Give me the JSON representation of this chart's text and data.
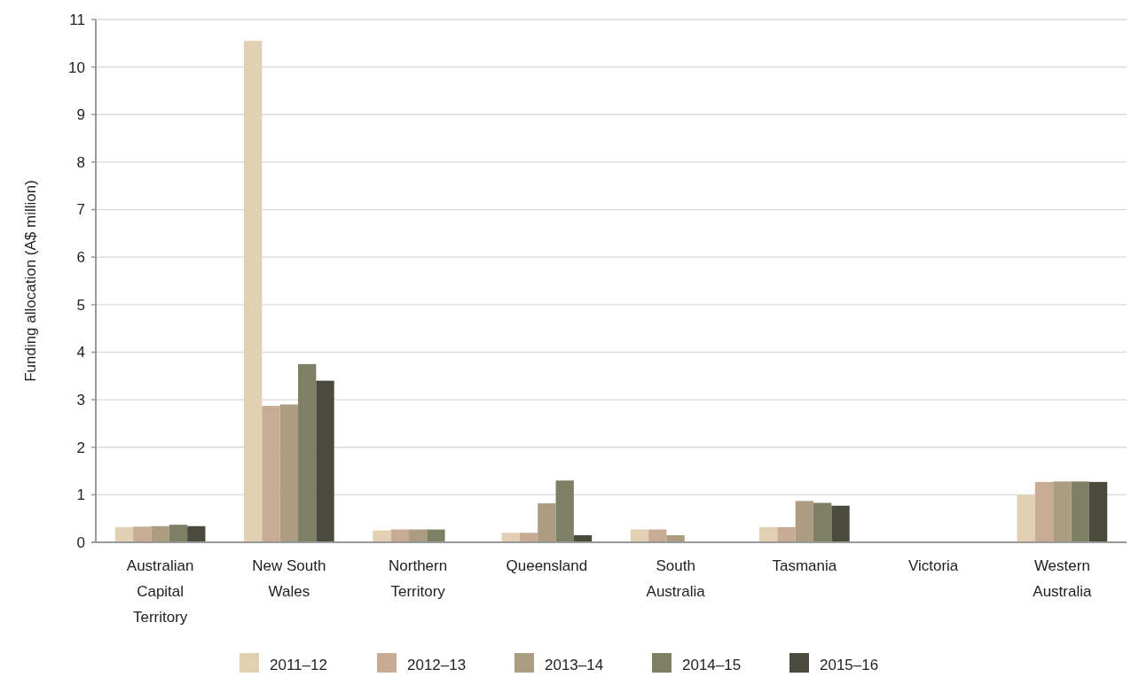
{
  "chart_data": {
    "type": "bar",
    "ylabel": "Funding allocation (A$ million)",
    "categories": [
      "Australian Capital Territory",
      "New South Wales",
      "Northern Territory",
      "Queensland",
      "South Australia",
      "Tasmania",
      "Victoria",
      "Western Australia"
    ],
    "series": [
      {
        "name": "2011–12",
        "color": "#e1d1b2",
        "values": [
          0.32,
          10.55,
          0.25,
          0.2,
          0.27,
          0.32,
          null,
          1.0
        ]
      },
      {
        "name": "2012–13",
        "color": "#c7ab95",
        "values": [
          0.33,
          2.87,
          0.27,
          0.2,
          0.27,
          0.32,
          null,
          1.27
        ]
      },
      {
        "name": "2013–14",
        "color": "#ac9d80",
        "values": [
          0.34,
          2.9,
          0.27,
          0.82,
          0.15,
          0.87,
          null,
          1.28
        ]
      },
      {
        "name": "2014–15",
        "color": "#7e8066",
        "values": [
          0.37,
          3.75,
          0.27,
          1.3,
          null,
          0.83,
          null,
          1.28
        ]
      },
      {
        "name": "2015–16",
        "color": "#4a4b3c",
        "values": [
          0.34,
          3.4,
          null,
          0.15,
          null,
          0.77,
          null,
          1.27
        ]
      }
    ],
    "ylim": [
      0,
      11
    ],
    "yticks": [
      0,
      1,
      2,
      3,
      4,
      5,
      6,
      7,
      8,
      9,
      10,
      11
    ],
    "grid": "y",
    "legend": "bottom"
  }
}
